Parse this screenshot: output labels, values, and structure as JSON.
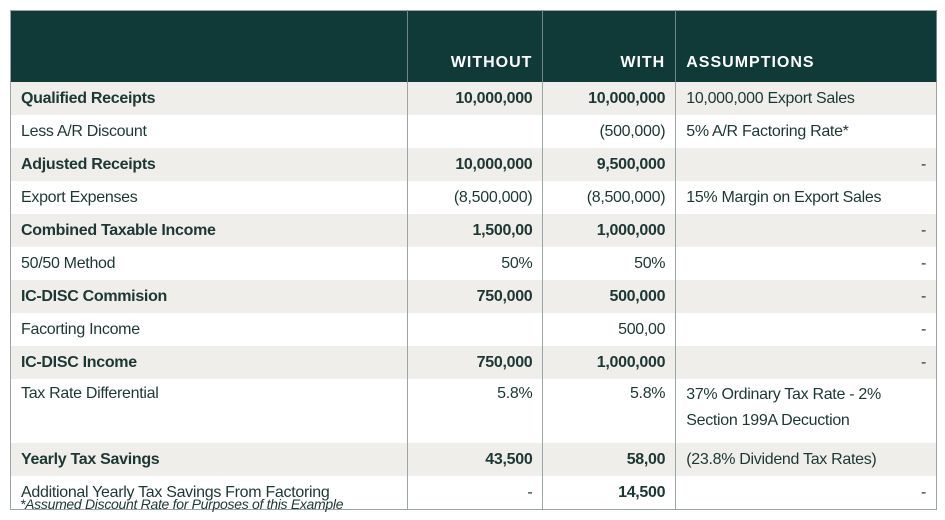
{
  "headers": [
    "",
    "WITHOUT",
    "WITH",
    "ASSUMPTIONS"
  ],
  "rows": [
    {
      "label": "Qualified Receipts",
      "without": "10,000,000",
      "with": "10,000,000",
      "assumptions": "10,000,000 Export Sales",
      "bold": true
    },
    {
      "label": "Less A/R Discount",
      "without": "",
      "with": "(500,000)",
      "assumptions": "5% A/R Factoring Rate*",
      "bold": false
    },
    {
      "label": "Adjusted Receipts",
      "without": "10,000,000",
      "with": "9,500,000",
      "assumptions": "-",
      "bold": true
    },
    {
      "label": "Export Expenses",
      "without": "(8,500,000)",
      "with": "(8,500,000)",
      "assumptions": "15% Margin on Export Sales",
      "bold": false
    },
    {
      "label": "Combined Taxable Income",
      "without": "1,500,00",
      "with": "1,000,000",
      "assumptions": "-",
      "bold": true
    },
    {
      "label": "50/50 Method",
      "without": "50%",
      "with": "50%",
      "assumptions": "-",
      "bold": false
    },
    {
      "label": "IC-DISC Commision",
      "without": "750,000",
      "with": "500,000",
      "assumptions": "-",
      "bold": true
    },
    {
      "label": "Facorting Income",
      "without": "",
      "with": "500,00",
      "assumptions": "-",
      "bold": false
    },
    {
      "label": "IC-DISC Income",
      "without": "750,000",
      "with": "1,000,000",
      "assumptions": "-",
      "bold": true
    },
    {
      "label": "Tax Rate Differential",
      "without": "5.8%",
      "with": "5.8%",
      "assumptions": "37% Ordinary Tax Rate - 2% Section 199A Decuction",
      "bold": false
    },
    {
      "label": "Yearly Tax Savings",
      "without": "43,500",
      "with": "58,00",
      "assumptions": "(23.8% Dividend Tax Rates)",
      "bold": true
    },
    {
      "label": "Additional Yearly Tax Savings From Factoring",
      "without": "-",
      "with": "14,500",
      "assumptions": "-",
      "bold": false
    }
  ],
  "footnote": "*Assumed Discount Rate for Purposes of this Example",
  "colors": {
    "header_bg": "#0f3a38",
    "stripe": "#efeeea",
    "text": "#1c3834"
  }
}
